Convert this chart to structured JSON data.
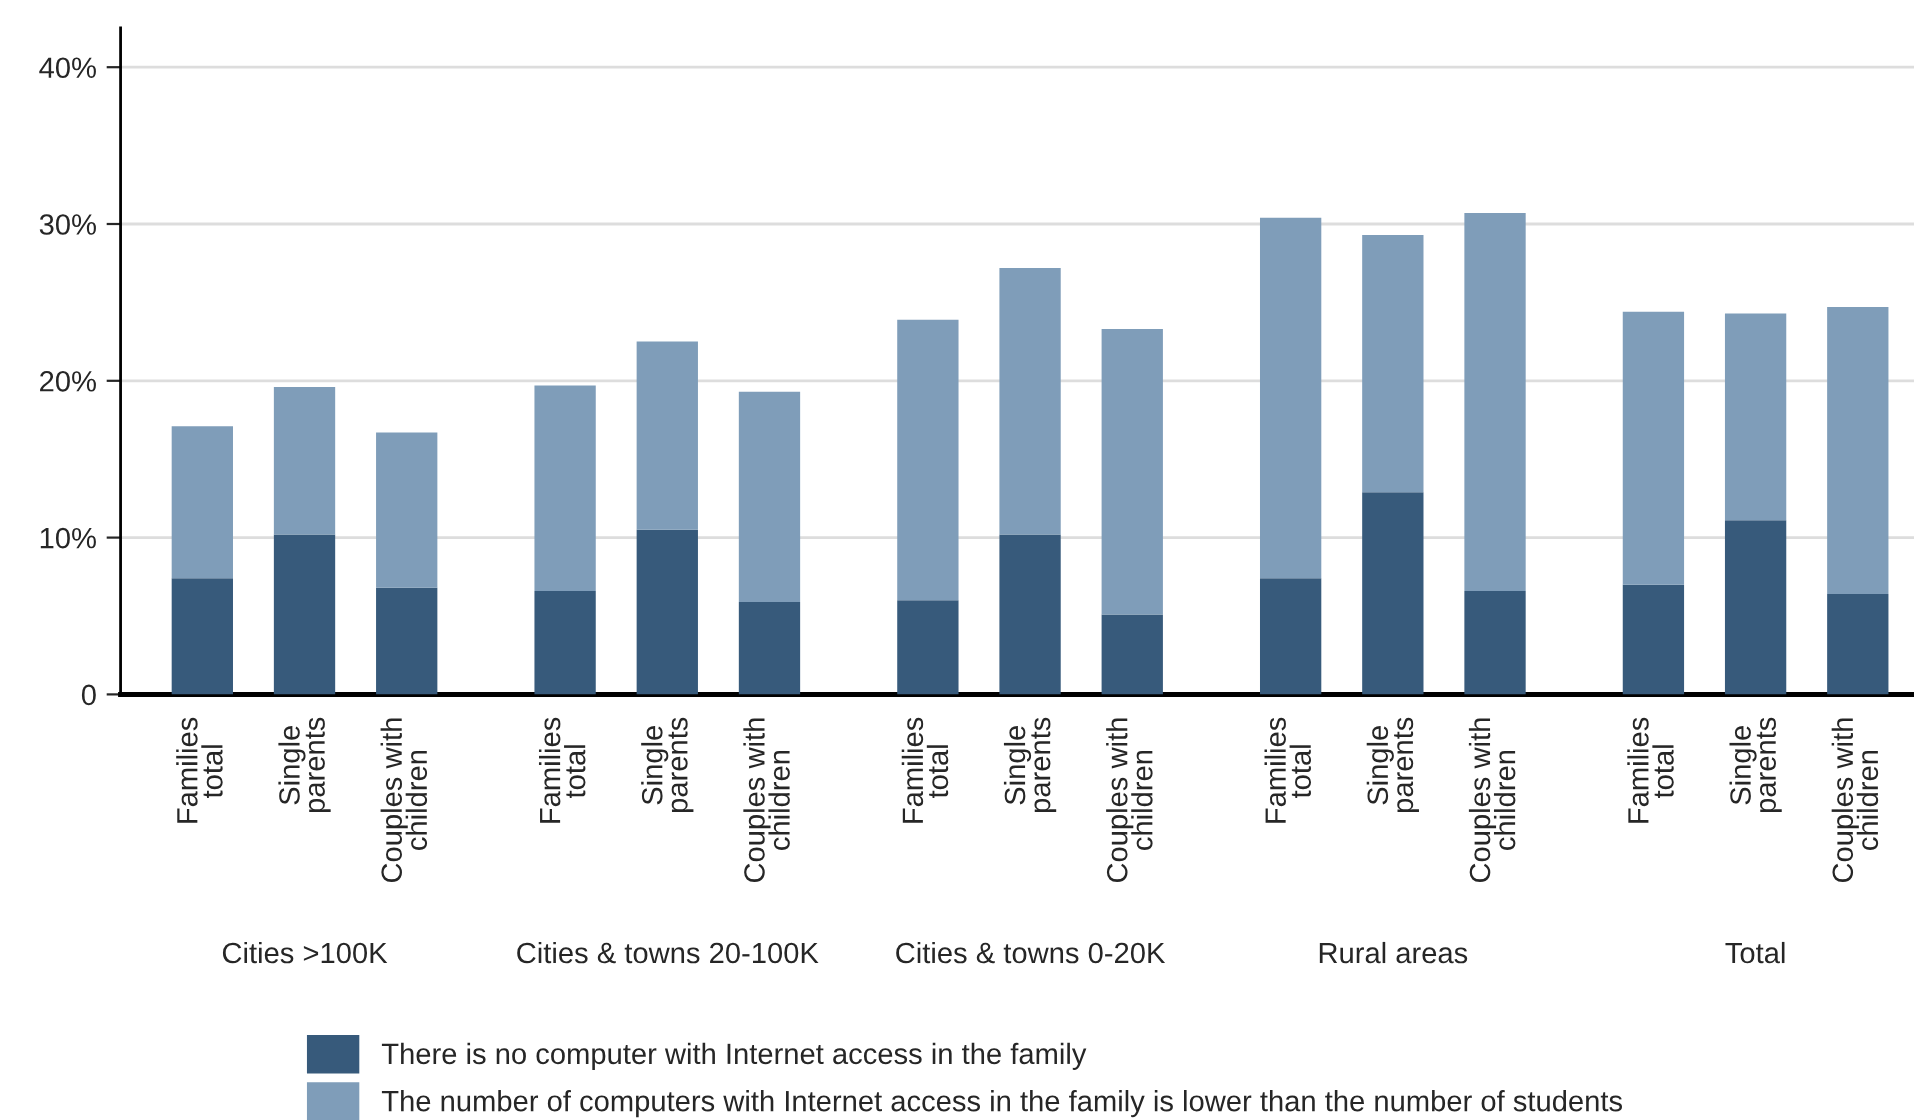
{
  "chart_data": {
    "type": "bar",
    "stacked": true,
    "categories": [
      "Families\ntotal",
      "Single\nparents",
      "Couples with\nchildren",
      "Families\ntotal",
      "Single\nparents",
      "Couples with\nchildren",
      "Families\ntotal",
      "Single\nparents",
      "Couples with\nchildren",
      "Families\ntotal",
      "Single\nparents",
      "Couples with\nchildren",
      "Families\ntotal",
      "Single\nparents",
      "Couples with\nchildren"
    ],
    "series": [
      {
        "name": "There is no computer with Internet access in the family",
        "color": "#375a7b",
        "values": [
          7.4,
          10.2,
          6.8,
          6.6,
          10.5,
          5.9,
          6.0,
          10.2,
          5.1,
          7.4,
          12.9,
          6.6,
          7.0,
          11.1,
          6.4
        ]
      },
      {
        "name": "The number of computers with Internet access in the family is lower than the number of students",
        "color": "#7f9db9",
        "values": [
          9.7,
          9.4,
          9.9,
          13.1,
          12.0,
          13.4,
          17.9,
          17.0,
          18.2,
          23.0,
          16.4,
          24.1,
          17.4,
          13.2,
          18.3
        ]
      }
    ],
    "annotations": [
      "Cities >100K",
      "Cities & towns 20-100K",
      "Cities & towns 0-20K",
      "Rural areas",
      "Total"
    ],
    "ylim": [
      0,
      42.5
    ],
    "yticks": [
      {
        "value": 0,
        "label": "0"
      },
      {
        "value": 10,
        "label": "10%"
      },
      {
        "value": 20,
        "label": "20%"
      },
      {
        "value": 30,
        "label": "30%"
      },
      {
        "value": 40,
        "label": "40%"
      }
    ],
    "grid": "y",
    "legend": "bottom"
  }
}
